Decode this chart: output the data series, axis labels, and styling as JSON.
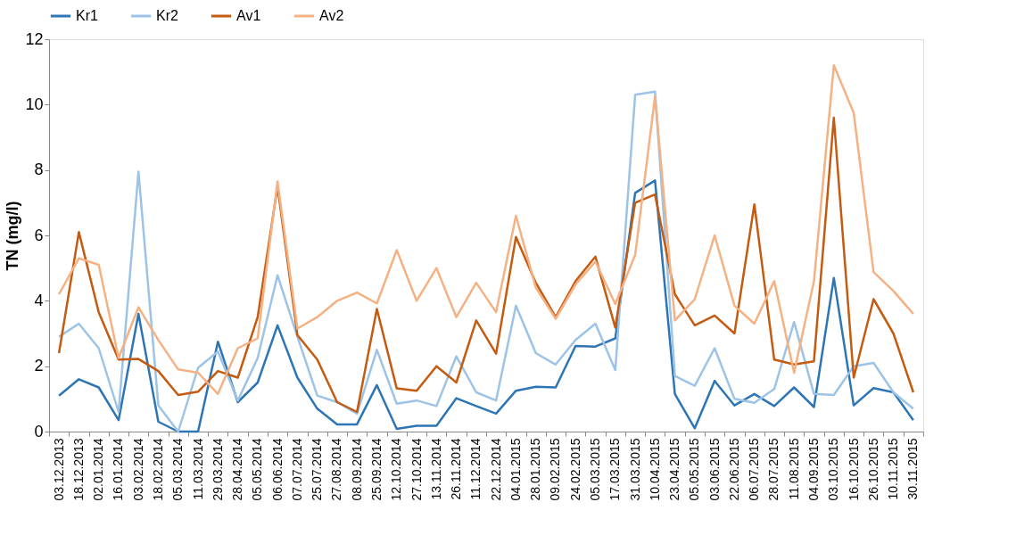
{
  "chart_data": {
    "type": "line",
    "ylabel": "TN (mg/l)",
    "legend": "top",
    "grid": false,
    "marker": "none",
    "line_style": "solid",
    "categories": [
      "03.12.2013",
      "18.12.2013",
      "02.01.2014",
      "16.01.2014",
      "03.02.2014",
      "18.02.2014",
      "05.03.2014",
      "11.03.2014",
      "29.03.2014",
      "28.04.2014",
      "05.05.2014",
      "06.06.2014",
      "07.07.2014",
      "25.07.2014",
      "27.08.2014",
      "08.09.2014",
      "25.09.2014",
      "12.10.2014",
      "27.10.2014",
      "13.11.2014",
      "26.11.2014",
      "11.12.2014",
      "22.12.2014",
      "04.01.2015",
      "28.01.2015",
      "09.02.2015",
      "24.02.2015",
      "05.03.2015",
      "17.03.2015",
      "31.03.2015",
      "10.04.2015",
      "23.04.2015",
      "05.05.2015",
      "03.06.2015",
      "22.06.2015",
      "06.07.2015",
      "28.07.2015",
      "11.08.2015",
      "04.09.2015",
      "03.10.2015",
      "16.10.2015",
      "26.10.2015",
      "10.11.2015",
      "30.11.2015"
    ],
    "ylim": [
      0,
      12
    ],
    "yticks": [
      0,
      2,
      4,
      6,
      8,
      10,
      12
    ],
    "series": [
      {
        "name": "Kr1",
        "color": "#2e75b6",
        "values": [
          1.1,
          1.6,
          1.35,
          0.35,
          3.6,
          0.3,
          0.0,
          0.0,
          2.75,
          0.9,
          1.5,
          3.25,
          1.65,
          0.7,
          0.22,
          0.22,
          1.42,
          0.08,
          0.18,
          0.18,
          1.02,
          0.78,
          0.55,
          1.25,
          1.37,
          1.35,
          2.62,
          2.6,
          2.85,
          7.3,
          7.68,
          1.15,
          0.1,
          1.55,
          0.8,
          1.15,
          0.78,
          1.35,
          0.75,
          4.7,
          0.8,
          1.33,
          1.2,
          0.35
        ]
      },
      {
        "name": "Kr2",
        "color": "#9dc3e6",
        "values": [
          2.9,
          3.3,
          2.55,
          0.6,
          7.95,
          0.8,
          0.0,
          1.95,
          2.45,
          0.95,
          2.25,
          4.78,
          2.9,
          1.1,
          0.9,
          0.55,
          2.5,
          0.85,
          0.95,
          0.78,
          2.3,
          1.2,
          0.95,
          3.85,
          2.4,
          2.05,
          2.8,
          3.3,
          1.88,
          10.3,
          10.4,
          1.7,
          1.4,
          2.55,
          1.0,
          0.88,
          1.3,
          3.35,
          1.15,
          1.12,
          2.0,
          2.1,
          1.2,
          0.7
        ]
      },
      {
        "name": "Av1",
        "color": "#c55a11",
        "values": [
          2.4,
          6.1,
          3.65,
          2.2,
          2.22,
          1.85,
          1.12,
          1.22,
          1.85,
          1.65,
          3.5,
          7.5,
          2.95,
          2.2,
          0.9,
          0.6,
          3.75,
          1.32,
          1.25,
          2.0,
          1.5,
          3.4,
          2.38,
          5.95,
          4.55,
          3.5,
          4.6,
          5.35,
          3.18,
          7.0,
          7.25,
          4.2,
          3.25,
          3.55,
          3.0,
          6.95,
          2.2,
          2.05,
          2.15,
          9.6,
          1.65,
          4.05,
          3.0,
          1.2
        ]
      },
      {
        "name": "Av2",
        "color": "#f4b183",
        "values": [
          4.2,
          5.3,
          5.1,
          2.25,
          3.8,
          2.8,
          1.9,
          1.8,
          1.15,
          2.55,
          2.85,
          7.65,
          3.15,
          3.5,
          4.0,
          4.25,
          3.92,
          5.55,
          4.0,
          5.0,
          3.5,
          4.55,
          3.65,
          6.6,
          4.4,
          3.45,
          4.5,
          5.2,
          3.9,
          5.4,
          10.25,
          3.4,
          4.05,
          6.0,
          3.85,
          3.3,
          4.6,
          1.8,
          4.6,
          11.2,
          9.75,
          4.88,
          4.3,
          3.6
        ]
      }
    ]
  }
}
